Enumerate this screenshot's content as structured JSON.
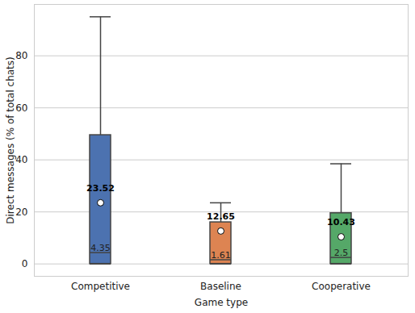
{
  "chart_data": {
    "type": "box",
    "categories": [
      "Competitive",
      "Baseline",
      "Cooperative"
    ],
    "colors": [
      "#4c72b0",
      "#dd8452",
      "#55a868"
    ],
    "whisker_low": [
      0,
      0,
      0
    ],
    "q1": [
      0,
      0,
      0
    ],
    "median": [
      4.35,
      1.61,
      2.5
    ],
    "q3": [
      49.5,
      16,
      19.5
    ],
    "whisker_high": [
      95,
      23.5,
      38.5
    ],
    "mean": [
      23.52,
      12.65,
      10.43
    ],
    "data_labels": true,
    "xlabel": "Game type",
    "ylabel": "Direct messages (% of total chats)",
    "ylim": [
      -4.75,
      99.75
    ],
    "yticks": [
      0,
      20,
      40,
      60,
      80
    ],
    "grid": true
  }
}
